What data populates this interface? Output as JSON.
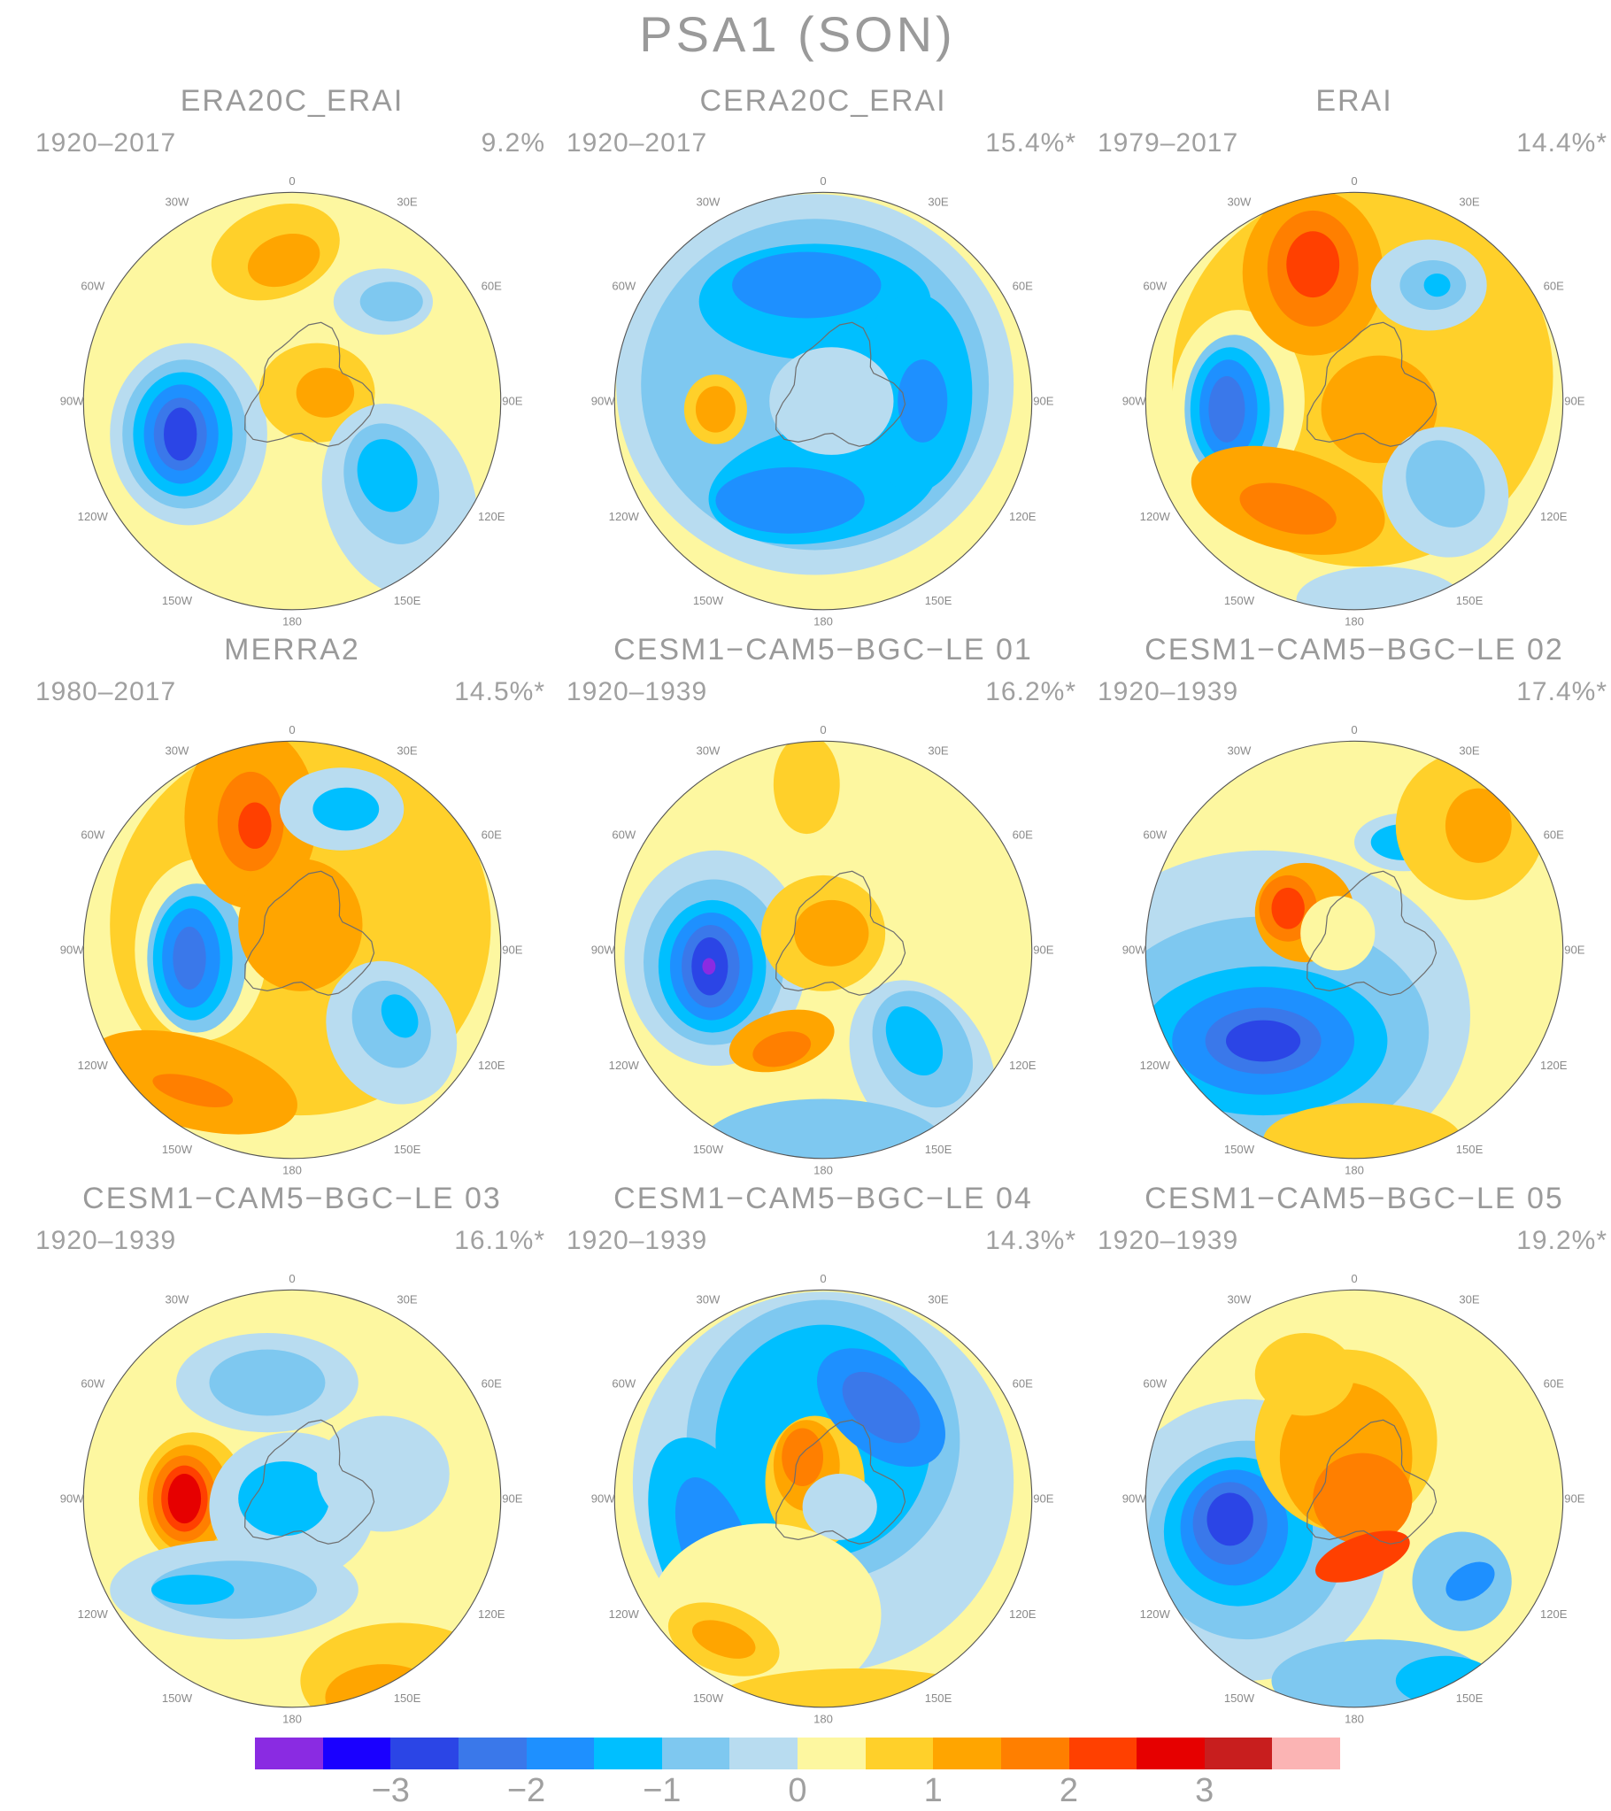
{
  "title": "PSA1 (SON)",
  "lon_labels": [
    "0",
    "30E",
    "60E",
    "90E",
    "120E",
    "150E",
    "180",
    "150W",
    "120W",
    "90W",
    "60W",
    "30W"
  ],
  "colorbar": {
    "colors": [
      "#8a2be2",
      "#1a00ff",
      "#2b45e6",
      "#3a78ea",
      "#1e90ff",
      "#00bfff",
      "#7ec8f0",
      "#b8dcf0",
      "#fdf7a0",
      "#ffd02a",
      "#ffa500",
      "#ff7f00",
      "#ff4000",
      "#e60000",
      "#c81e1e",
      "#fbb4b4"
    ],
    "tick_labels": [
      "−3",
      "−2",
      "−1",
      "0",
      "1",
      "2",
      "3"
    ]
  },
  "panels": [
    {
      "title": "ERA20C_ERAI",
      "period": "1920–2017",
      "variance": "9.2%"
    },
    {
      "title": "CERA20C_ERAI",
      "period": "1920–2017",
      "variance": "15.4%*"
    },
    {
      "title": "ERAI",
      "period": "1979–2017",
      "variance": "14.4%*"
    },
    {
      "title": "MERRA2",
      "period": "1980–2017",
      "variance": "14.5%*"
    },
    {
      "title": "CESM1−CAM5−BGC−LE 01",
      "period": "1920–1939",
      "variance": "16.2%*"
    },
    {
      "title": "CESM1−CAM5−BGC−LE 02",
      "period": "1920–1939",
      "variance": "17.4%*"
    },
    {
      "title": "CESM1−CAM5−BGC−LE 03",
      "period": "1920–1939",
      "variance": "16.1%*"
    },
    {
      "title": "CESM1−CAM5−BGC−LE 04",
      "period": "1920–1939",
      "variance": "14.3%*"
    },
    {
      "title": "CESM1−CAM5−BGC−LE 05",
      "period": "1920–1939",
      "variance": "19.2%*"
    }
  ]
}
